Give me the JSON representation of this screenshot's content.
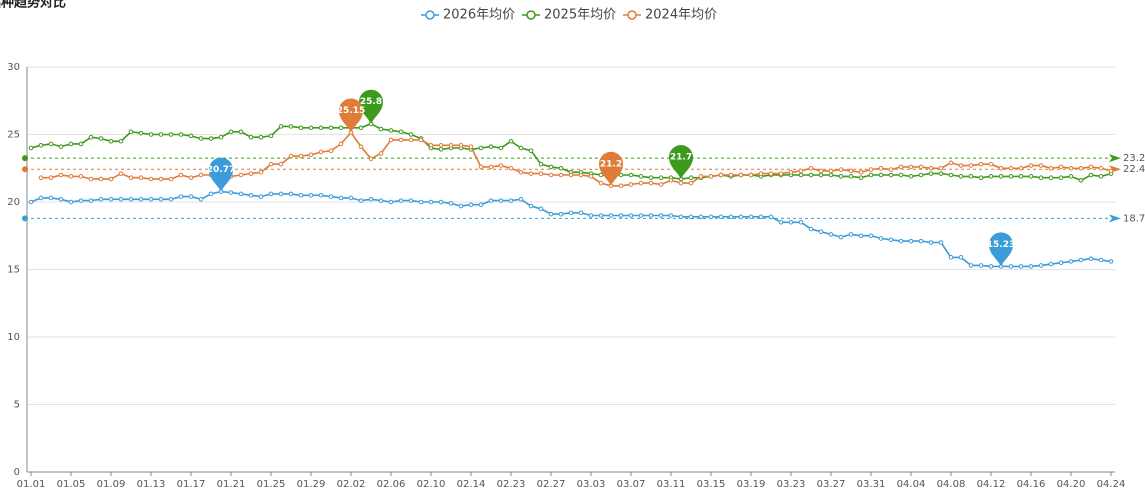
{
  "chart_data": {
    "type": "line",
    "title": "品种趋势对比",
    "categories": [
      "01.01",
      null,
      null,
      null,
      "01.05",
      null,
      null,
      null,
      "01.09",
      null,
      null,
      null,
      "01.13",
      null,
      null,
      null,
      "01.17",
      null,
      null,
      null,
      "01.21",
      null,
      null,
      null,
      "01.25",
      null,
      null,
      null,
      "01.29",
      null,
      null,
      null,
      "02.02",
      null,
      null,
      null,
      "02.06",
      null,
      null,
      null,
      "02.10",
      null,
      null,
      null,
      "02.14",
      null,
      null,
      null,
      "02.23",
      null,
      null,
      null,
      "02.27",
      null,
      null,
      null,
      "03.03",
      null,
      null,
      null,
      "03.07",
      null,
      null,
      null,
      "03.11",
      null,
      null,
      null,
      "03.15",
      null,
      null,
      null,
      "03.19",
      null,
      null,
      null,
      "03.23",
      null,
      null,
      null,
      "03.27",
      null,
      null,
      null,
      "03.31",
      null,
      null,
      null,
      "04.04",
      null,
      null,
      null,
      "04.08",
      null,
      null,
      null,
      "04.12",
      null,
      null,
      null,
      "04.16",
      null,
      null,
      null,
      "04.20",
      null,
      null,
      null,
      "04.24"
    ],
    "series": [
      {
        "name": "2026年均价",
        "color": "#3c9bd9",
        "values": [
          20.0,
          20.3,
          20.3,
          20.2,
          20.0,
          20.1,
          20.1,
          20.2,
          20.2,
          20.2,
          20.2,
          20.2,
          20.2,
          20.2,
          20.2,
          20.4,
          20.4,
          20.2,
          20.6,
          20.77,
          20.7,
          20.6,
          20.5,
          20.4,
          20.6,
          20.6,
          20.6,
          20.5,
          20.5,
          20.5,
          20.4,
          20.3,
          20.3,
          20.1,
          20.2,
          20.1,
          20.0,
          20.1,
          20.1,
          20.0,
          20.0,
          20.0,
          19.9,
          19.7,
          19.8,
          19.8,
          20.1,
          20.1,
          20.1,
          20.2,
          19.7,
          19.5,
          19.1,
          19.1,
          19.2,
          19.2,
          19.0,
          19.0,
          19.0,
          19.0,
          19.0,
          19.0,
          19.0,
          19.0,
          19.0,
          18.9,
          18.9,
          18.9,
          18.9,
          18.9,
          18.9,
          18.9,
          18.9,
          18.9,
          18.9,
          18.5,
          18.5,
          18.5,
          18.0,
          17.8,
          17.6,
          17.4,
          17.6,
          17.5,
          17.5,
          17.3,
          17.2,
          17.1,
          17.1,
          17.1,
          17.0,
          17.0,
          15.9,
          15.9,
          15.3,
          15.3,
          15.23,
          15.23,
          15.23,
          15.23,
          15.23,
          15.3,
          15.4,
          15.5,
          15.6,
          15.7,
          15.8,
          15.7,
          15.6
        ]
      },
      {
        "name": "2025年均价",
        "color": "#3d9a1c",
        "values": [
          24.0,
          24.2,
          24.3,
          24.1,
          24.3,
          24.3,
          24.8,
          24.7,
          24.5,
          24.5,
          25.2,
          25.1,
          25.0,
          25.0,
          25.0,
          25.0,
          24.9,
          24.7,
          24.7,
          24.8,
          25.2,
          25.2,
          24.8,
          24.8,
          24.9,
          25.6,
          25.6,
          25.5,
          25.5,
          25.5,
          25.5,
          25.5,
          25.5,
          25.5,
          25.8,
          25.4,
          25.3,
          25.2,
          25.0,
          24.7,
          24.0,
          23.9,
          24.0,
          24.0,
          23.9,
          24.0,
          24.1,
          24.0,
          24.5,
          24.0,
          23.8,
          22.8,
          22.6,
          22.5,
          22.2,
          22.2,
          22.1,
          22.0,
          22.0,
          22.0,
          22.0,
          21.9,
          21.8,
          21.8,
          21.8,
          21.7,
          21.8,
          21.8,
          21.9,
          22.0,
          21.9,
          22.0,
          22.0,
          21.9,
          22.0,
          22.0,
          22.0,
          22.0,
          22.0,
          22.0,
          22.0,
          21.9,
          21.9,
          21.8,
          22.0,
          22.0,
          22.0,
          22.0,
          21.9,
          22.0,
          22.1,
          22.1,
          22.0,
          21.9,
          21.9,
          21.8,
          21.9,
          21.9,
          21.9,
          21.9,
          21.9,
          21.8,
          21.8,
          21.8,
          21.9,
          21.6,
          22.0,
          21.9,
          22.1
        ]
      },
      {
        "name": "2024年均价",
        "color": "#e07b39",
        "values": [
          null,
          21.8,
          21.8,
          22.0,
          21.9,
          21.9,
          21.7,
          21.7,
          21.7,
          22.1,
          21.8,
          21.8,
          21.7,
          21.7,
          21.7,
          22.0,
          21.8,
          22.0,
          22.0,
          21.9,
          21.9,
          22.0,
          22.1,
          22.2,
          22.8,
          22.8,
          23.4,
          23.4,
          23.5,
          23.7,
          23.8,
          24.3,
          25.15,
          24.1,
          23.2,
          23.6,
          24.6,
          24.6,
          24.6,
          24.6,
          24.2,
          24.2,
          24.2,
          24.2,
          24.1,
          22.6,
          22.6,
          22.7,
          22.5,
          22.2,
          22.1,
          22.1,
          22.0,
          22.0,
          22.0,
          22.0,
          21.9,
          21.4,
          21.2,
          21.2,
          21.3,
          21.4,
          21.4,
          21.3,
          21.6,
          21.4,
          21.4,
          21.9,
          21.9,
          22.0,
          22.0,
          22.0,
          22.0,
          22.1,
          22.1,
          22.1,
          22.2,
          22.3,
          22.5,
          22.3,
          22.3,
          22.4,
          22.3,
          22.2,
          22.4,
          22.5,
          22.4,
          22.6,
          22.6,
          22.6,
          22.5,
          22.5,
          22.9,
          22.7,
          22.7,
          22.8,
          22.8,
          22.5,
          22.5,
          22.5,
          22.7,
          22.7,
          22.5,
          22.6,
          22.5,
          22.5,
          22.6,
          22.5,
          22.3
        ]
      }
    ],
    "mark_points": [
      {
        "series": 0,
        "index": 19,
        "value": 20.77
      },
      {
        "series": 0,
        "index": 97,
        "value": 15.23
      },
      {
        "series": 1,
        "index": 34,
        "value": 25.8
      },
      {
        "series": 1,
        "index": 65,
        "value": 21.7
      },
      {
        "series": 2,
        "index": 32,
        "value": 25.15
      },
      {
        "series": 2,
        "index": 58,
        "value": 21.2
      }
    ],
    "mark_lines": [
      {
        "series": 1,
        "value": 23.25
      },
      {
        "series": 2,
        "value": 22.43
      },
      {
        "series": 0,
        "value": 18.79
      }
    ],
    "ylim": [
      0,
      30
    ],
    "yticks": [
      0,
      5,
      10,
      15,
      20,
      25,
      30
    ],
    "grid": true,
    "legend": "top"
  }
}
